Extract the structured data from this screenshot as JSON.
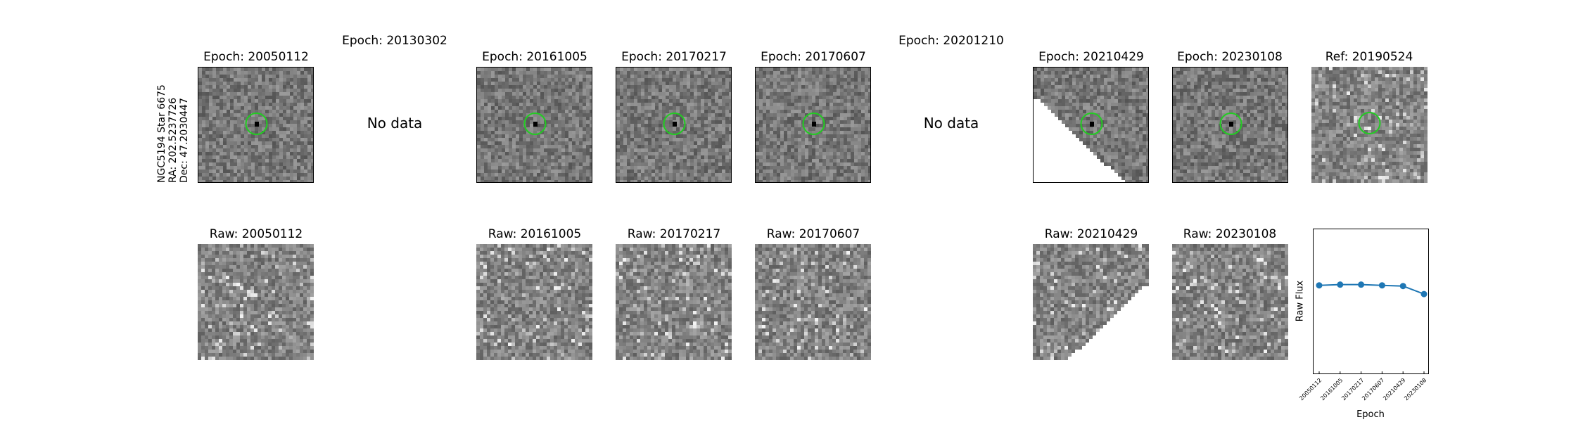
{
  "star": {
    "name": "NGC5194 Star 6675",
    "ra": "RA: 202.5237726",
    "dec": "Dec: 47.2030447"
  },
  "no_data_label": "No data",
  "top_row": [
    {
      "title": "Epoch: 20050112",
      "has_data": true,
      "circle": true
    },
    {
      "title": "Epoch: 20130302",
      "has_data": false
    },
    {
      "title": "Epoch: 20161005",
      "has_data": true,
      "circle": true
    },
    {
      "title": "Epoch: 20170217",
      "has_data": true,
      "circle": true
    },
    {
      "title": "Epoch: 20170607",
      "has_data": true,
      "circle": true
    },
    {
      "title": "Epoch: 20201210",
      "has_data": false
    },
    {
      "title": "Epoch: 20210429",
      "has_data": true,
      "circle": true,
      "partial": true
    },
    {
      "title": "Epoch: 20230108",
      "has_data": true,
      "circle": true
    },
    {
      "title": "Ref: 20190524",
      "has_data": true,
      "circle": true,
      "ref": true
    }
  ],
  "bottom_row": [
    {
      "title": "Raw: 20050112",
      "has_data": true
    },
    {
      "title": "",
      "has_data": false
    },
    {
      "title": "Raw: 20161005",
      "has_data": true
    },
    {
      "title": "Raw: 20170217",
      "has_data": true
    },
    {
      "title": "Raw: 20170607",
      "has_data": true
    },
    {
      "title": "",
      "has_data": false
    },
    {
      "title": "Raw: 20210429",
      "has_data": true,
      "partial": true
    },
    {
      "title": "Raw: 20230108",
      "has_data": true
    }
  ],
  "colors": {
    "circle": "#22cc22",
    "line": "#1f77b4"
  },
  "chart_data": {
    "type": "line",
    "title": "",
    "xlabel": "Epoch",
    "ylabel": "Raw Flux",
    "categories": [
      "20050112",
      "20161005",
      "20170217",
      "20170607",
      "20210429",
      "20230108"
    ],
    "values": [
      0.615,
      0.62,
      0.62,
      0.615,
      0.61,
      0.555
    ],
    "ylim": [
      0,
      1
    ],
    "grid": false,
    "legend": "none"
  }
}
